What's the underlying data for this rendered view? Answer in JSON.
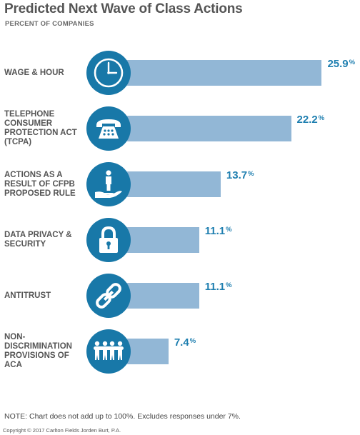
{
  "header": {
    "title": "Predicted Next Wave of Class Actions",
    "subtitle": "PERCENT OF COMPANIES"
  },
  "chart_data": {
    "type": "bar",
    "orientation": "horizontal",
    "title": "Predicted Next Wave of Class Actions",
    "subtitle": "PERCENT OF COMPANIES",
    "categories": [
      "WAGE & HOUR",
      "TELEPHONE CONSUMER PROTECTION ACT (TCPA)",
      "ACTIONS AS A RESULT OF CFPB PROPOSED RULE",
      "DATA PRIVACY & SECURITY",
      "ANTITRUST",
      "NON-DISCRIMINATION PROVISIONS OF ACA"
    ],
    "values": [
      25.9,
      22.2,
      13.7,
      11.1,
      11.1,
      7.4
    ],
    "value_labels": [
      "25.9",
      "22.2",
      "13.7",
      "11.1",
      "11.1",
      "7.4"
    ],
    "unit": "%",
    "icons": [
      "clock-icon",
      "telephone-icon",
      "person-in-hand-icon",
      "padlock-icon",
      "chain-link-icon",
      "people-group-icon"
    ],
    "colors": {
      "bar": "#92b7d6",
      "icon_circle": "#1878a8",
      "value_text": "#1f7fb0"
    },
    "grid": false,
    "legend": "none"
  },
  "footer": {
    "note": "NOTE: Chart does not add up to 100%. Excludes responses under 7%.",
    "copyright": "Copyright © 2017 Carlton Fields Jorden Burt, P.A."
  }
}
